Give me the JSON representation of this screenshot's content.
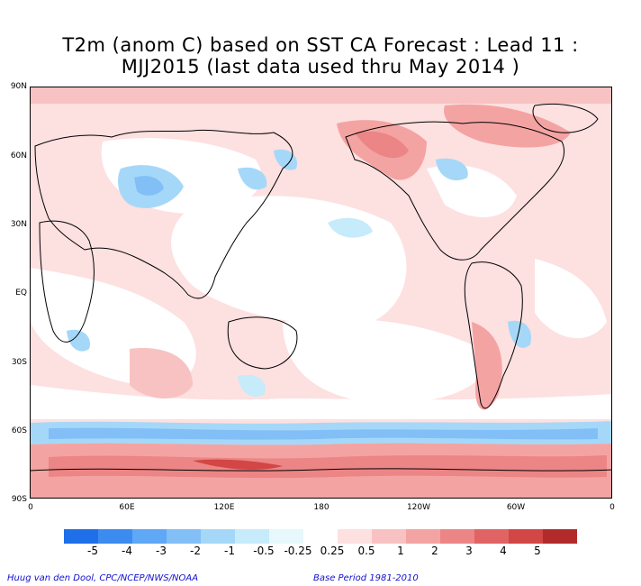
{
  "title": {
    "line1": "T2m (anom C) based on SST CA Forecast : Lead 11 :",
    "line2": "MJJ2015 (last data used thru May 2014 )"
  },
  "axes": {
    "y_labels": [
      "90N",
      "60N",
      "30N",
      "EQ",
      "30S",
      "60S",
      "90S"
    ],
    "x_labels": [
      "0",
      "60E",
      "120E",
      "180",
      "120W",
      "60W",
      "0"
    ]
  },
  "legend": {
    "labels": [
      "-5",
      "-4",
      "-3",
      "-2",
      "-1",
      "-0.5",
      "-0.25",
      "0.25",
      "0.5",
      "1",
      "2",
      "3",
      "4",
      "5"
    ],
    "colors": [
      "#1e6fe8",
      "#3c8cf0",
      "#5ea8f5",
      "#82bff7",
      "#a5d8f8",
      "#c6ebfa",
      "#e6f8fb",
      "#ffffff",
      "#fde0e0",
      "#f9c2c2",
      "#f4a3a3",
      "#ec8585",
      "#e06464",
      "#d24646",
      "#b22a2a"
    ]
  },
  "footer": {
    "credit": "Huug van den Dool, CPC/NCEP/NWS/NOAA",
    "base_period": "Base Period 1981-2010"
  }
}
